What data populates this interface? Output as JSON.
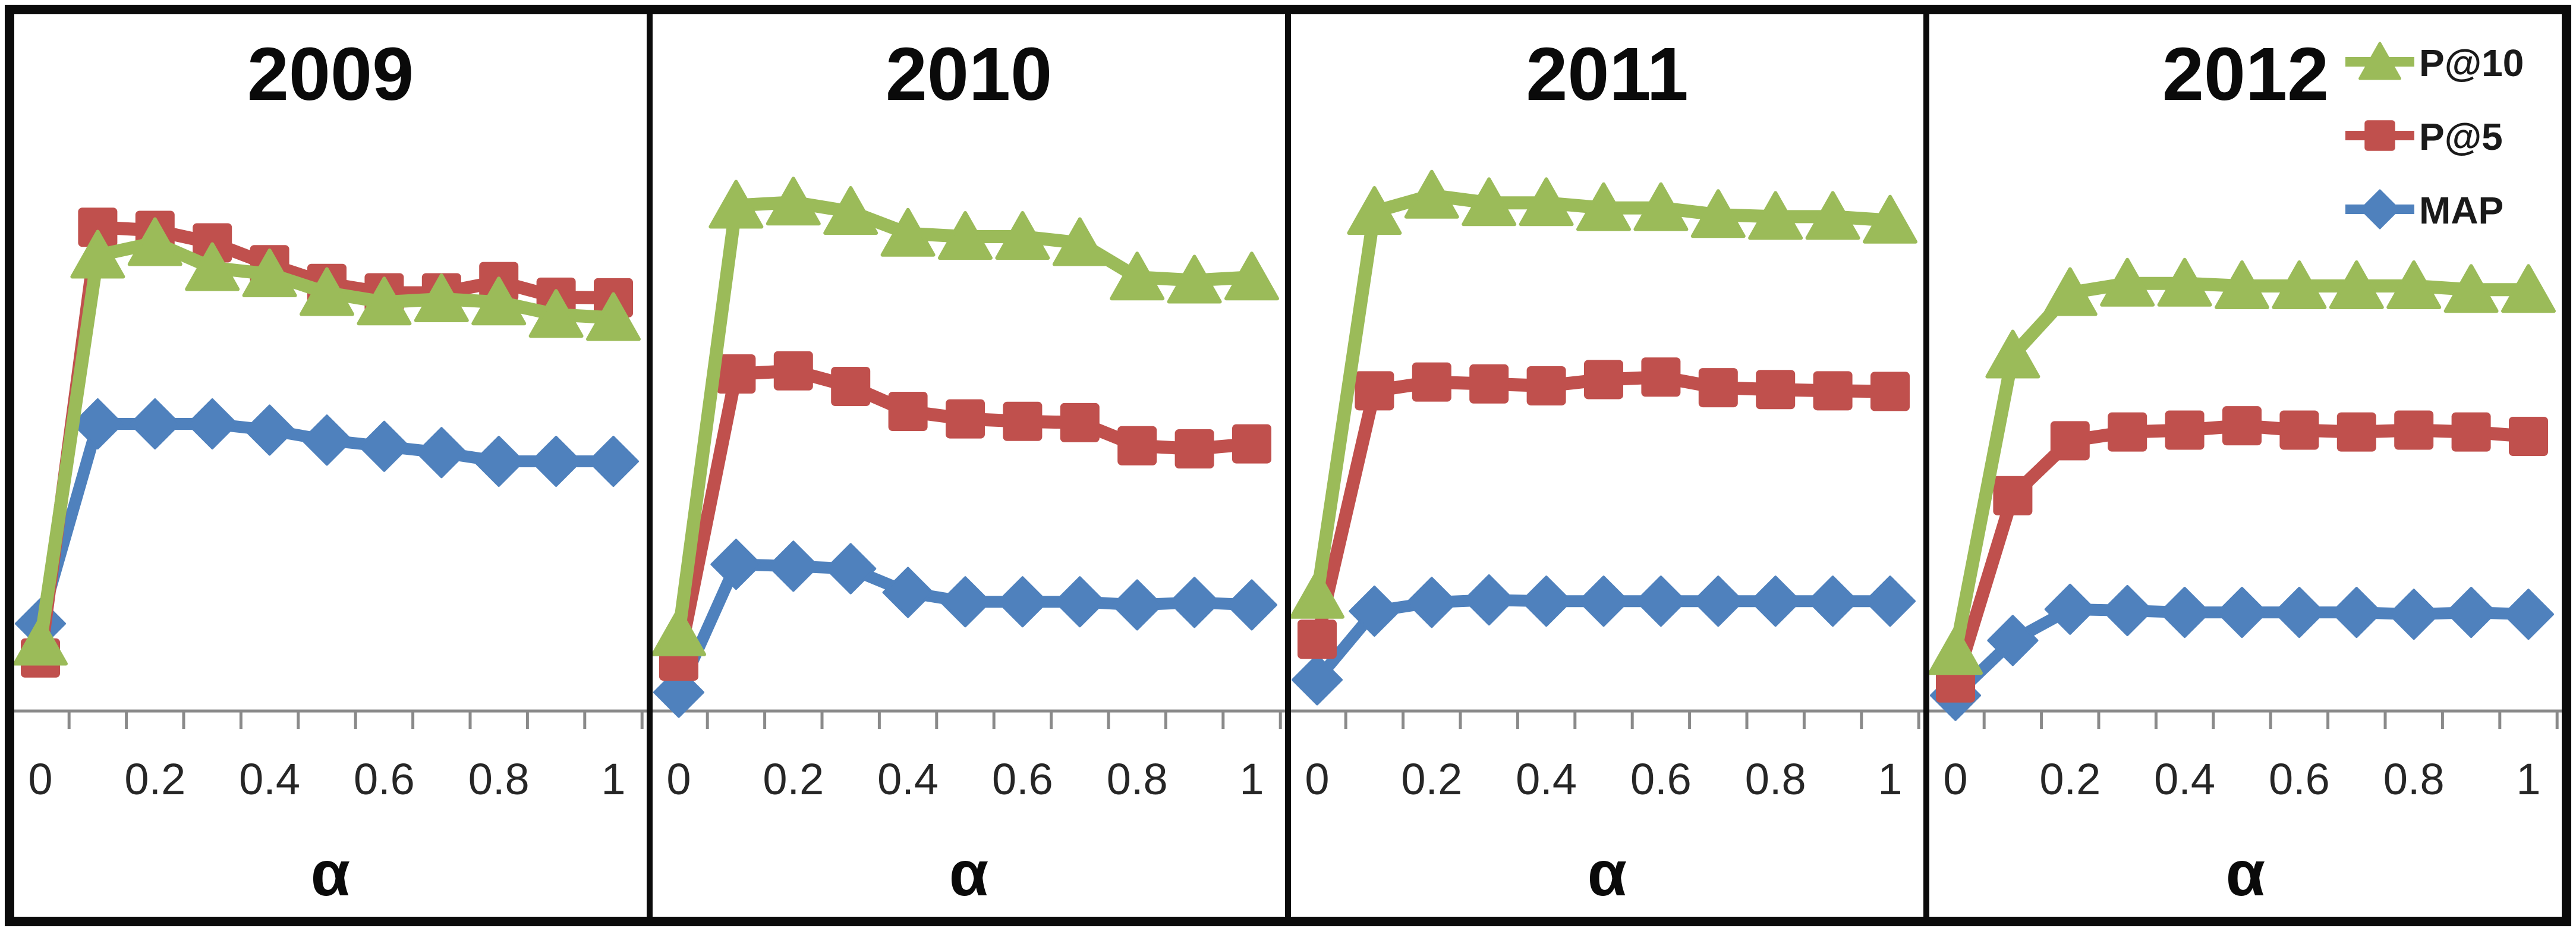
{
  "figure": {
    "background": "#ffffff",
    "border_color": "#0b0b0b",
    "separator_color": "#0b0b0b"
  },
  "colors": {
    "p10_green": "#9BBB59",
    "p5_red": "#C0504D",
    "map_blue": "#4F81BD",
    "axis_gray": "#8A8A8A",
    "tick_text": "#262626",
    "title_text": "#0a0a0a"
  },
  "chart_data": {
    "type": "line",
    "x": [
      0,
      0.1,
      0.2,
      0.3,
      0.4,
      0.5,
      0.6,
      0.7,
      0.8,
      0.9,
      1.0
    ],
    "x_tick_labels": [
      "0",
      "0.2",
      "0.4",
      "0.6",
      "0.8",
      "1"
    ],
    "xlabel": "α",
    "ylim": [
      0,
      1
    ],
    "y_axis_note": "no y-axis ticks or labels shown; values estimated on 0-1 scale from marker positions",
    "grid": false,
    "legend": {
      "position": "top-right inside 2012 panel",
      "entries": [
        {
          "label": "P@10",
          "marker": "triangle",
          "color_key": "p10_green"
        },
        {
          "label": "P@5",
          "marker": "square",
          "color_key": "p5_red"
        },
        {
          "label": "MAP",
          "marker": "diamond",
          "color_key": "map_blue"
        }
      ]
    },
    "panels": [
      {
        "title": "2009",
        "series": [
          {
            "name": "P@10",
            "marker": "triangle",
            "color_key": "p10_green",
            "values": [
              0.11,
              0.73,
              0.75,
              0.71,
              0.7,
              0.67,
              0.655,
              0.66,
              0.655,
              0.635,
              0.63
            ]
          },
          {
            "name": "P@5",
            "marker": "square",
            "color_key": "p5_red",
            "values": [
              0.085,
              0.775,
              0.77,
              0.75,
              0.715,
              0.685,
              0.67,
              0.67,
              0.688,
              0.663,
              0.662
            ]
          },
          {
            "name": "MAP",
            "marker": "diamond",
            "color_key": "map_blue",
            "values": [
              0.14,
              0.46,
              0.46,
              0.46,
              0.45,
              0.434,
              0.424,
              0.414,
              0.4,
              0.4,
              0.4
            ]
          }
        ]
      },
      {
        "title": "2010",
        "series": [
          {
            "name": "P@10",
            "marker": "triangle",
            "color_key": "p10_green",
            "values": [
              0.125,
              0.81,
              0.815,
              0.8,
              0.765,
              0.76,
              0.76,
              0.75,
              0.695,
              0.69,
              0.695
            ]
          },
          {
            "name": "P@5",
            "marker": "square",
            "color_key": "p5_red",
            "values": [
              0.08,
              0.54,
              0.545,
              0.52,
              0.48,
              0.468,
              0.464,
              0.462,
              0.425,
              0.42,
              0.428
            ]
          },
          {
            "name": "MAP",
            "marker": "diamond",
            "color_key": "map_blue",
            "values": [
              0.03,
              0.235,
              0.232,
              0.228,
              0.19,
              0.175,
              0.175,
              0.175,
              0.17,
              0.174,
              0.17
            ]
          }
        ]
      },
      {
        "title": "2011",
        "series": [
          {
            "name": "P@10",
            "marker": "triangle",
            "color_key": "p10_green",
            "values": [
              0.185,
              0.8,
              0.826,
              0.814,
              0.814,
              0.806,
              0.806,
              0.795,
              0.792,
              0.792,
              0.786
            ]
          },
          {
            "name": "P@5",
            "marker": "square",
            "color_key": "p5_red",
            "values": [
              0.115,
              0.513,
              0.527,
              0.524,
              0.521,
              0.531,
              0.535,
              0.518,
              0.515,
              0.513,
              0.512
            ]
          },
          {
            "name": "MAP",
            "marker": "diamond",
            "color_key": "map_blue",
            "values": [
              0.05,
              0.16,
              0.174,
              0.178,
              0.176,
              0.176,
              0.176,
              0.176,
              0.176,
              0.176,
              0.176
            ]
          }
        ]
      },
      {
        "title": "2012",
        "series": [
          {
            "name": "P@10",
            "marker": "triangle",
            "color_key": "p10_green",
            "values": [
              0.095,
              0.57,
              0.67,
              0.685,
              0.685,
              0.681,
              0.681,
              0.681,
              0.681,
              0.675,
              0.675
            ]
          },
          {
            "name": "P@5",
            "marker": "square",
            "color_key": "p5_red",
            "values": [
              0.045,
              0.345,
              0.433,
              0.447,
              0.45,
              0.457,
              0.45,
              0.447,
              0.45,
              0.447,
              0.44
            ]
          },
          {
            "name": "MAP",
            "marker": "diamond",
            "color_key": "map_blue",
            "values": [
              0.025,
              0.113,
              0.163,
              0.161,
              0.158,
              0.158,
              0.158,
              0.158,
              0.155,
              0.158,
              0.155
            ]
          }
        ]
      }
    ]
  }
}
